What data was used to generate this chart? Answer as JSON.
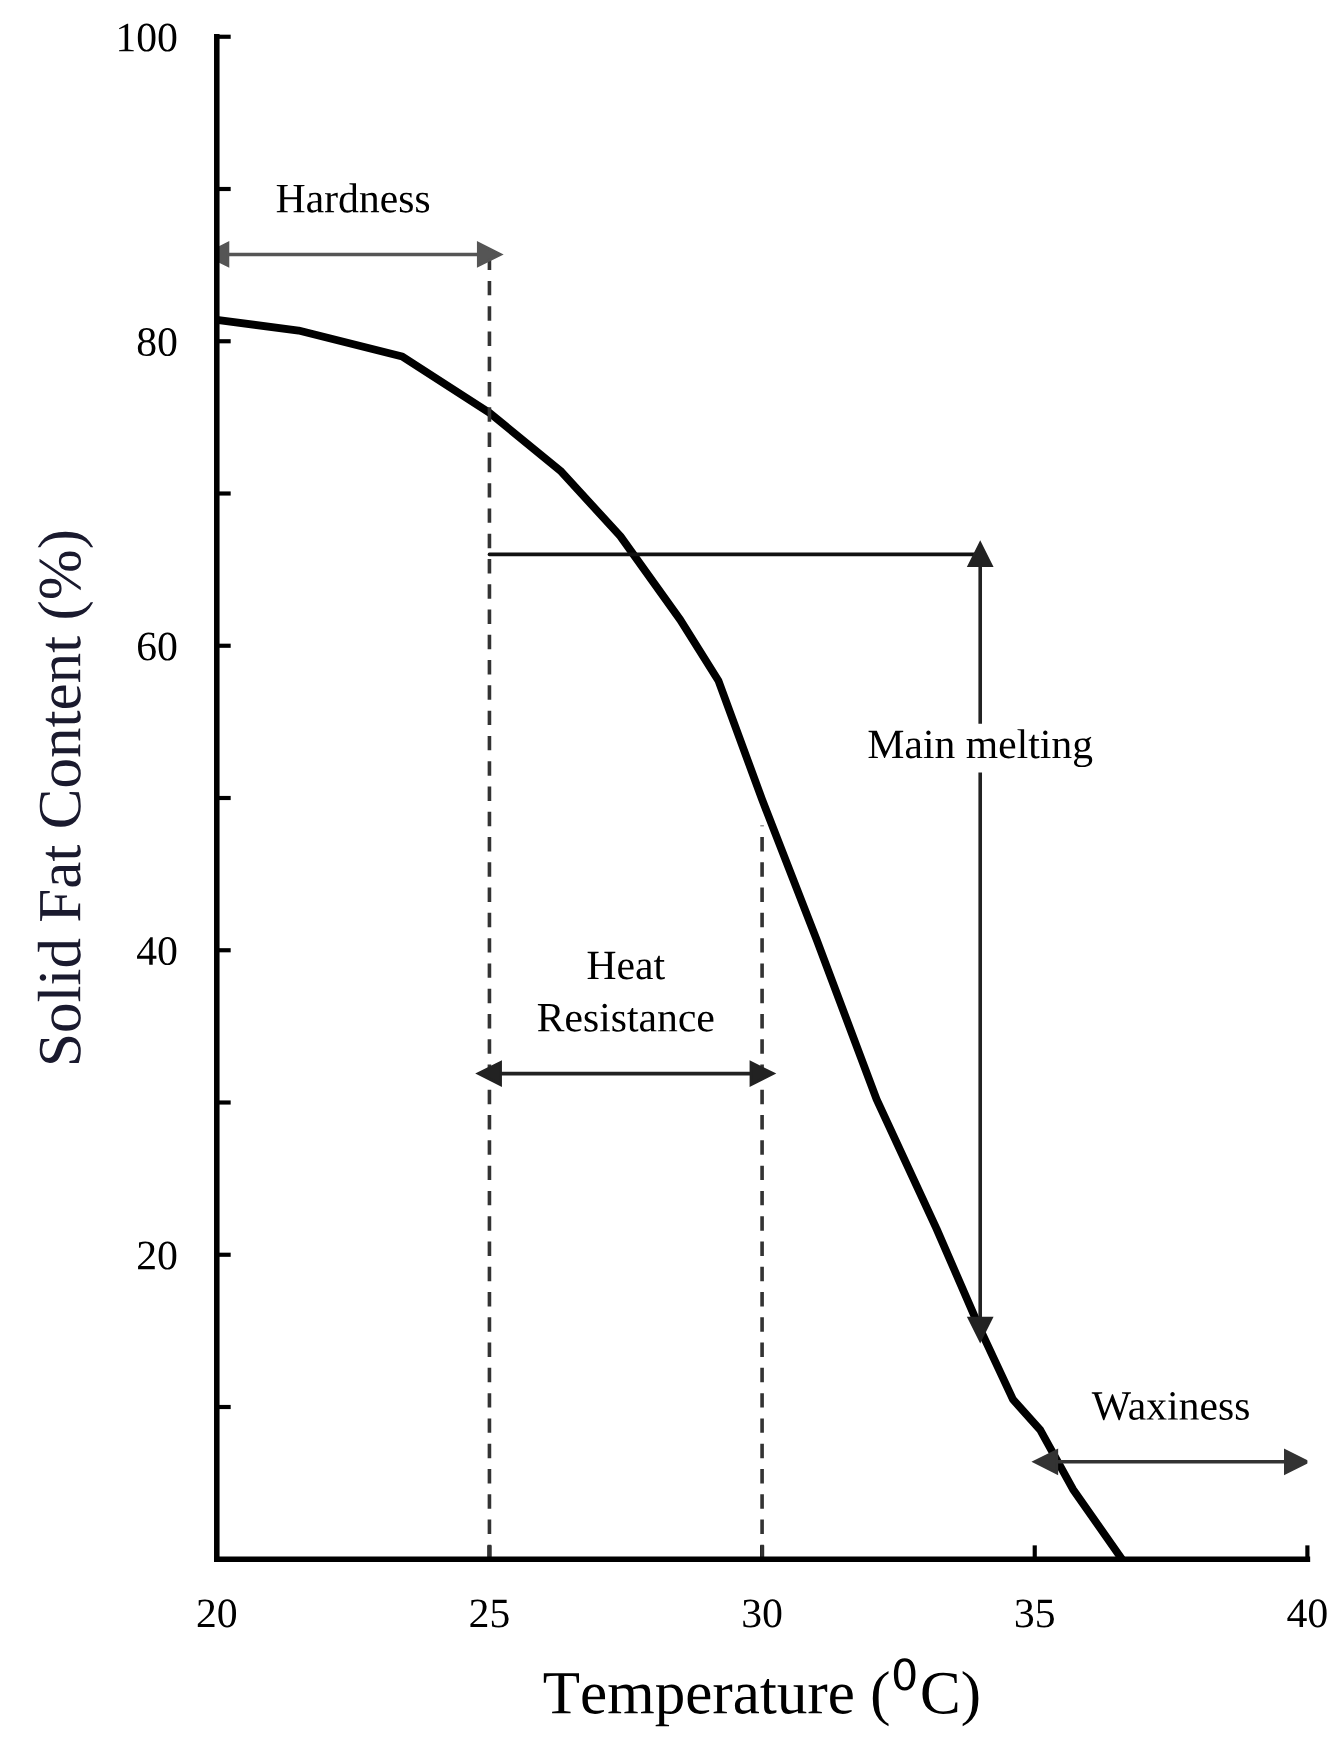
{
  "chart_data": {
    "type": "line",
    "xlabel": "Temperature ($^{0}$C)",
    "ylabel": "Solid Fat Content (%)",
    "xlim": [
      20,
      40
    ],
    "xticks": [
      20,
      25,
      30,
      35,
      40
    ],
    "ylim": [
      0,
      100
    ],
    "yticks": [
      {
        "value": 10,
        "label": null
      },
      20,
      {
        "value": 30,
        "label": null
      },
      40,
      {
        "value": 50,
        "label": null
      },
      60,
      {
        "value": 70,
        "label": null
      },
      80,
      {
        "value": 90,
        "label": null
      },
      100
    ],
    "grid": false,
    "legend": false,
    "series": [
      {
        "color": "#000000",
        "line_style": "solid",
        "marker": "none",
        "x": [
          20,
          21.5,
          23.4,
          25,
          26.3,
          27.4,
          28.5,
          29.2,
          30,
          31,
          32.1,
          33.2,
          34,
          34.6,
          35.1,
          35.7,
          36.6
        ],
        "values": [
          81.4,
          80.7,
          79,
          75.3,
          71.5,
          67.2,
          61.7,
          57.7,
          49.9,
          40.7,
          30.2,
          21.7,
          15.1,
          10.5,
          8.5,
          4.6,
          0
        ]
      },
      {
        "color": "#333333",
        "line_style": "dashed",
        "marker": "none",
        "x": [
          25,
          25
        ],
        "values": [
          0,
          85.7
        ]
      },
      {
        "color": "#333333",
        "line_style": "dashed",
        "marker": "none",
        "x": [
          30,
          30
        ],
        "values": [
          0,
          48.2
        ]
      },
      {
        "color": "#111111",
        "line_style": "solid",
        "marker": "none",
        "x": [
          25,
          34
        ],
        "values": [
          66,
          66
        ]
      },
      {
        "color": "#555555",
        "line_style": "solid",
        "marker": "triangle",
        "x": [
          20,
          25
        ],
        "values": [
          85.7,
          85.7
        ]
      },
      {
        "color": "#222222",
        "line_style": "solid",
        "marker": "triangle",
        "x": [
          34,
          34
        ],
        "values": [
          66,
          15.1
        ]
      },
      {
        "color": "#222222",
        "line_style": "solid",
        "marker": "triangle",
        "x": [
          25,
          30
        ],
        "values": [
          31.9,
          31.9
        ]
      },
      {
        "color": "#333333",
        "line_style": "solid",
        "marker": "triangle",
        "x": [
          35.2,
          39.8
        ],
        "values": [
          6.4,
          6.4
        ]
      }
    ],
    "annotations": [
      "Hardness",
      "Main melting",
      "Heat\nResistance",
      "Waxiness"
    ]
  }
}
